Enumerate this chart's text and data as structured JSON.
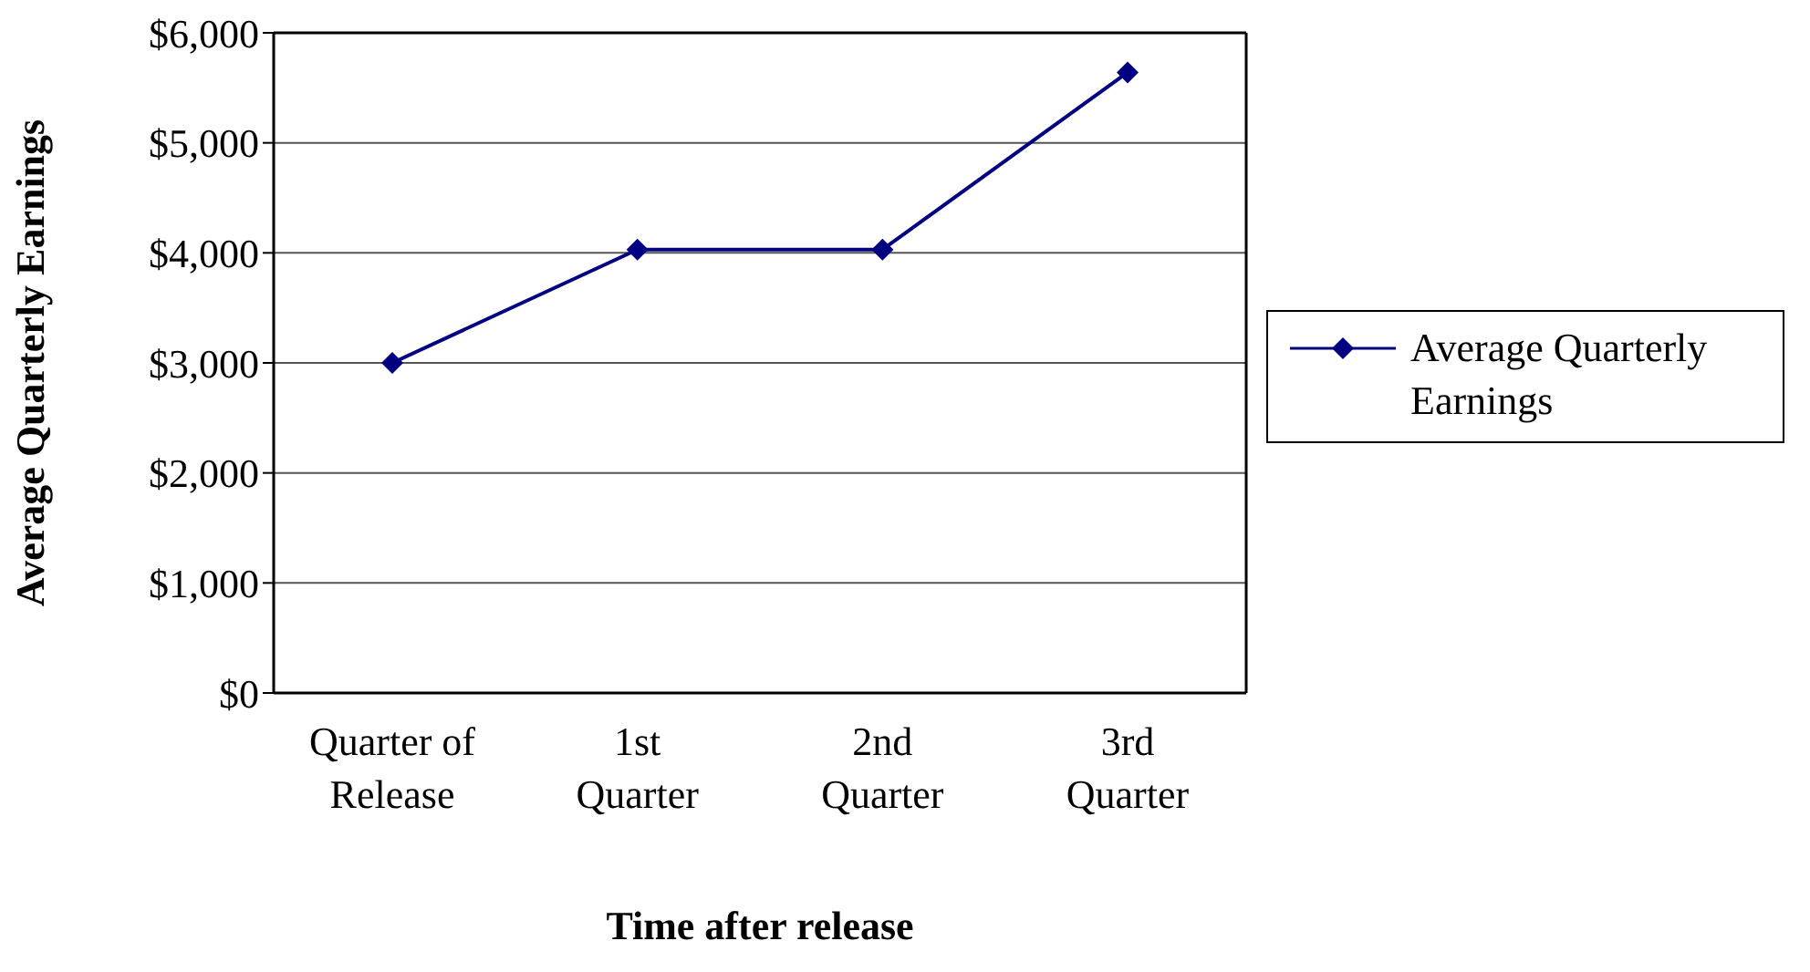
{
  "chart_data": {
    "type": "line",
    "xlabel": "Time after release",
    "ylabel": "Average Quarterly Earnings",
    "categories": [
      "Quarter of\nRelease",
      "1st\nQuarter",
      "2nd\nQuarter",
      "3rd\nQuarter"
    ],
    "series": [
      {
        "name": "Average Quarterly Earnings",
        "color": "#000080",
        "values": [
          3000,
          4030,
          4030,
          5640
        ]
      }
    ],
    "ylim": [
      0,
      6000
    ],
    "yticks": [
      {
        "value": 0,
        "label": "$0"
      },
      {
        "value": 1000,
        "label": "$1,000"
      },
      {
        "value": 2000,
        "label": "$2,000"
      },
      {
        "value": 3000,
        "label": "$3,000"
      },
      {
        "value": 4000,
        "label": "$4,000"
      },
      {
        "value": 5000,
        "label": "$5,000"
      },
      {
        "value": 6000,
        "label": "$6,000"
      }
    ],
    "grid": "y",
    "legend": "right",
    "marker": "diamond",
    "line_style": "solid"
  }
}
